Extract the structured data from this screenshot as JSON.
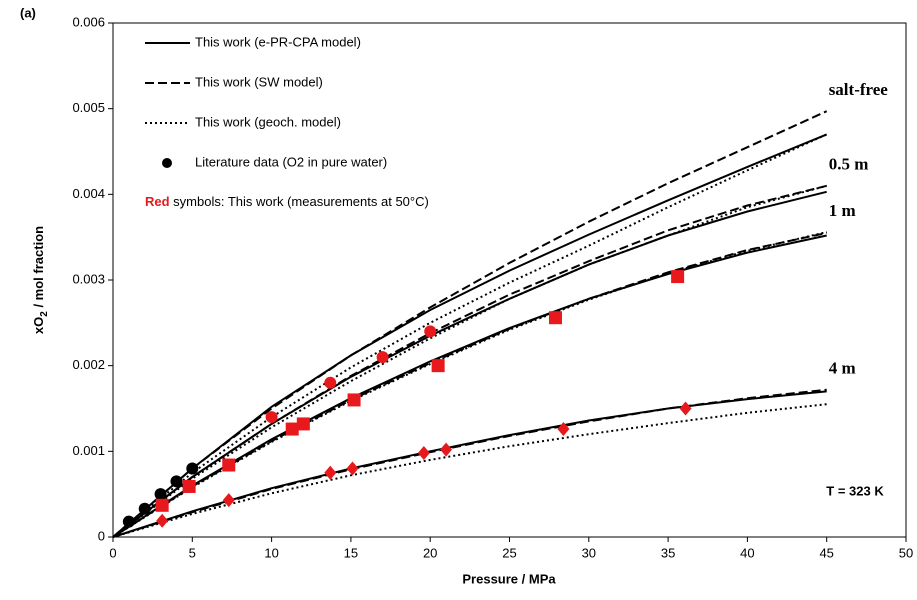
{
  "chart_data": {
    "type": "line",
    "panel_label": "(a)",
    "x_label": "Pressure / MPa",
    "y_label": [
      "xO",
      "2",
      " / mol fraction"
    ],
    "xlim": [
      0,
      50
    ],
    "xticks": [
      0,
      5,
      10,
      15,
      20,
      25,
      30,
      35,
      40,
      45,
      50
    ],
    "ylim": [
      0,
      0.006
    ],
    "yticks": [
      0,
      0.001,
      0.002,
      0.003,
      0.004,
      0.005,
      0.006
    ],
    "x": [
      0,
      5,
      10,
      15,
      20,
      25,
      30,
      35,
      40,
      45
    ],
    "models": [
      {
        "name": "This work (e-PR-CPA model)",
        "dash": "solid"
      },
      {
        "name": "This work (SW model)",
        "dash": "dashed"
      },
      {
        "name": "This work (geoch. model)",
        "dash": "dotted"
      }
    ],
    "curves": [
      {
        "label": "salt-free",
        "values": [
          [
            0,
            0.0008,
            0.00152,
            0.00212,
            0.00265,
            0.00311,
            0.00353,
            0.00393,
            0.00432,
            0.0047
          ],
          [
            0,
            0.0008,
            0.0015,
            0.00212,
            0.00268,
            0.0032,
            0.00368,
            0.00413,
            0.00455,
            0.00497
          ],
          [
            0,
            0.00075,
            0.0014,
            0.00198,
            0.0025,
            0.00297,
            0.0034,
            0.00385,
            0.00428,
            0.0047
          ]
        ]
      },
      {
        "label": "0.5 m",
        "values": [
          [
            0,
            0.0007,
            0.00132,
            0.00187,
            0.00235,
            0.00278,
            0.00318,
            0.00352,
            0.0038,
            0.00403
          ],
          [
            0,
            0.0007,
            0.00132,
            0.00188,
            0.00238,
            0.00283,
            0.00322,
            0.00358,
            0.00387,
            0.0041
          ],
          [
            0,
            0.00068,
            0.00128,
            0.00182,
            0.00232,
            0.00278,
            0.00318,
            0.00352,
            0.00385,
            0.0041
          ]
        ]
      },
      {
        "label": "1 m",
        "values": [
          [
            0,
            0.0006,
            0.00114,
            0.00162,
            0.00205,
            0.00244,
            0.00278,
            0.00307,
            0.00332,
            0.00352
          ],
          [
            0,
            0.00059,
            0.00112,
            0.0016,
            0.00203,
            0.00243,
            0.00278,
            0.00309,
            0.00335,
            0.00355
          ],
          [
            0,
            0.00058,
            0.00111,
            0.00159,
            0.00202,
            0.00242,
            0.00277,
            0.00308,
            0.00334,
            0.00356
          ]
        ]
      },
      {
        "label": "4 m",
        "values": [
          [
            0,
            0.0003,
            0.00057,
            0.0008,
            0.001,
            0.00119,
            0.00136,
            0.0015,
            0.00161,
            0.0017
          ],
          [
            0,
            0.00029,
            0.00056,
            0.00079,
            0.00099,
            0.00118,
            0.00135,
            0.0015,
            0.00162,
            0.00172
          ],
          [
            0,
            0.00027,
            0.00051,
            0.00072,
            0.0009,
            0.00106,
            0.0012,
            0.00133,
            0.00145,
            0.00155
          ]
        ]
      }
    ],
    "points": [
      {
        "name": "Literature data (O2 in pure water)",
        "marker": "circle",
        "color": "#000000",
        "x": [
          1,
          2,
          3,
          4,
          5
        ],
        "y": [
          0.00018,
          0.00033,
          0.0005,
          0.00065,
          0.0008
        ]
      },
      {
        "marker": "circle",
        "color": "#e8191c",
        "x": [
          10,
          13.7,
          17,
          20
        ],
        "y": [
          0.0014,
          0.0018,
          0.0021,
          0.0024
        ]
      },
      {
        "marker": "square",
        "color": "#e8191c",
        "x": [
          3.1,
          4.8,
          7.3,
          11.3,
          12,
          15.2,
          20.5,
          27.9,
          35.6
        ],
        "y": [
          0.00037,
          0.00059,
          0.00084,
          0.00126,
          0.00132,
          0.0016,
          0.002,
          0.00256,
          0.00304
        ]
      },
      {
        "marker": "diamond",
        "color": "#e8191c",
        "x": [
          3.1,
          7.3,
          13.7,
          15.1,
          19.6,
          21,
          28.4,
          36.1
        ],
        "y": [
          0.00019,
          0.00043,
          0.00075,
          0.0008,
          0.00098,
          0.00102,
          0.00126,
          0.0015
        ]
      }
    ],
    "note": {
      "bold": "Red",
      "text": " symbols: This work (measurements at 50°C)",
      "color": "#e8191c"
    },
    "annotation": "T = 323 K"
  }
}
